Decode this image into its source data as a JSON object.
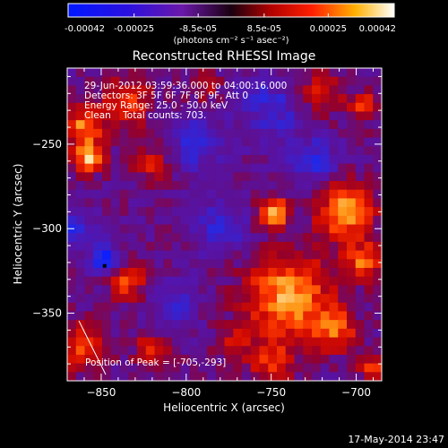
{
  "colorbar": {
    "tick_labels": [
      "-0.00042",
      "-0.00025",
      "-8.5e-05",
      "8.5e-05",
      "0.00025",
      "0.00042"
    ],
    "tick_values": [
      -0.00042,
      -0.00025,
      -8.5e-05,
      8.5e-05,
      0.00025,
      0.00042
    ],
    "units_text": "(photons cm⁻² s⁻¹ asec⁻²)",
    "range": [
      -0.00042,
      0.00042
    ]
  },
  "chart_data": {
    "type": "heatmap",
    "title": "Reconstructed RHESSI Image",
    "xlabel": "Heliocentric X (arcsec)",
    "ylabel": "Heliocentric Y (arcsec)",
    "xlim": [
      -870,
      -685
    ],
    "ylim": [
      -390,
      -205
    ],
    "x_ticks": [
      -850,
      -800,
      -750,
      -700
    ],
    "x_tick_labels": [
      "−850",
      "−800",
      "−750",
      "−700"
    ],
    "y_ticks": [
      -250,
      -300,
      -350
    ],
    "y_tick_labels": [
      "−250",
      "−300",
      "−350"
    ],
    "colormap": "blue-purple-red-yellow-white",
    "grid": false,
    "annotations": [
      "29-Jun-2012 03:59:36.000 to 04:00:16.000",
      "Detectors: 3F 5F 6F 7F 8F 9F, Att 0",
      "Energy Range: 25.0 - 50.0 keV",
      "Clean    Total counts: 703."
    ],
    "peak_label": "Position of Peak = [-705,-293]",
    "peak_position": [
      -705,
      -293
    ],
    "limb_line": true
  },
  "footer": {
    "timestamp": "17-May-2014 23:47"
  }
}
